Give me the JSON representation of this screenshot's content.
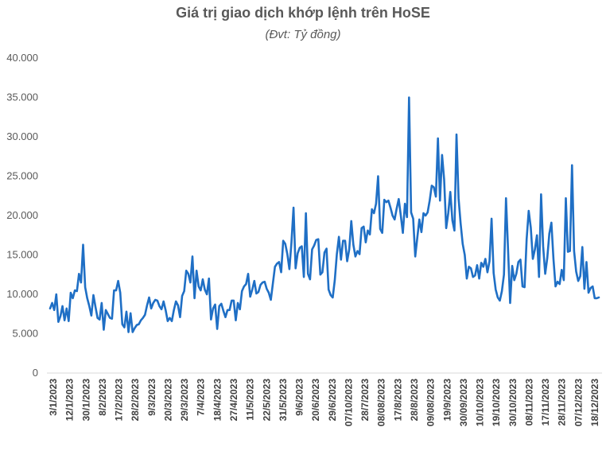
{
  "chart_data": {
    "type": "line",
    "title": "Giá trị giao dịch khớp lệnh trên HoSE",
    "subtitle": "(Đvt: Tỷ đồng)",
    "xlabel": "",
    "ylabel": "",
    "ylim": [
      0,
      40000
    ],
    "yticks": [
      "0",
      "5.000",
      "10.000",
      "15.000",
      "20.000",
      "25.000",
      "30.000",
      "35.000",
      "40.000"
    ],
    "x_tick_labels": [
      "3/1/2023",
      "12/1/2023",
      "30/1/2023",
      "8/2/2023",
      "17/2/2023",
      "28/2/2023",
      "9/3/2023",
      "20/3/2023",
      "29/3/2023",
      "7/4/2023",
      "18/4/2023",
      "27/4/2023",
      "11/5/2023",
      "22/5/2023",
      "31/5/2023",
      "9/6/2023",
      "20/6/2023",
      "29/6/2023",
      "07/10/2023",
      "28/7/2023",
      "08/08/2023",
      "17/8/2023",
      "28/8/2023",
      "09/08/2023",
      "19/9/2023",
      "30/09/2023",
      "10/10/2023",
      "19/10/2023",
      "30/10/2023",
      "08/11/2023",
      "17/11/2023",
      "28/11/2023",
      "07/12/2023",
      "18/12/2023"
    ],
    "grid": false,
    "legend": "none",
    "line_color": "#1F6FC5",
    "series": [
      {
        "values": [
          8200,
          8900,
          8000,
          10000,
          6500,
          7200,
          8500,
          6700,
          8200,
          6600,
          10200,
          9500,
          10500,
          10400,
          12600,
          11500,
          16300,
          10900,
          9500,
          8500,
          7300,
          9900,
          8400,
          7000,
          6800,
          8900,
          5500,
          8000,
          7500,
          7000,
          6900,
          10500,
          10500,
          11700,
          10200,
          6200,
          5800,
          7800,
          5200,
          7600,
          5200,
          5700,
          6100,
          6200,
          6700,
          7000,
          7400,
          8600,
          9600,
          8200,
          8900,
          9300,
          9200,
          8500,
          8100,
          9100,
          8000,
          6600,
          7000,
          6600,
          8000,
          9100,
          8600,
          7100,
          9800,
          10400,
          13000,
          12600,
          11500,
          14800,
          9500,
          13000,
          11000,
          10500,
          11900,
          10600,
          10000,
          12000,
          6800,
          8200,
          8700,
          5600,
          8500,
          8800,
          7900,
          7100,
          8000,
          8000,
          9200,
          9200,
          6700,
          8900,
          8100,
          10400,
          11000,
          11300,
          12600,
          9700,
          10600,
          11700,
          10100,
          10300,
          11200,
          11500,
          11600,
          10700,
          10200,
          9300,
          11400,
          13500,
          13900,
          14100,
          12800,
          16800,
          16400,
          15100,
          13200,
          16600,
          21000,
          13300,
          15200,
          15900,
          16100,
          12200,
          20300,
          12600,
          11900,
          15700,
          16200,
          16900,
          17000,
          12500,
          12800,
          15300,
          15800,
          10600,
          9900,
          9600,
          11800,
          15100,
          17300,
          14400,
          16800,
          16800,
          14200,
          15700,
          19300,
          16300,
          14800,
          15500,
          15100,
          18400,
          18600,
          16600,
          18100,
          17600,
          20800,
          20300,
          21500,
          25000,
          18300,
          17800,
          22000,
          21700,
          21900,
          21000,
          20000,
          19500,
          20900,
          22100,
          20000,
          17800,
          21500,
          19800,
          35000,
          20400,
          19600,
          14800,
          17200,
          19500,
          17900,
          20300,
          20000,
          20400,
          21900,
          23800,
          23600,
          22400,
          29800,
          21900,
          27700,
          24600,
          18400,
          20300,
          23000,
          19400,
          18100,
          30300,
          22200,
          19000,
          16400,
          15000,
          12000,
          13500,
          13300,
          12200,
          12400,
          13700,
          12000,
          14000,
          13500,
          14500,
          12800,
          14200,
          19600,
          12700,
          10600,
          9600,
          9200,
          10400,
          12500,
          22200,
          15600,
          8900,
          13600,
          11800,
          12600,
          14100,
          14400,
          11000,
          10900,
          17000,
          20600,
          18500,
          14500,
          15700,
          17500,
          12200,
          22700,
          16100,
          12600,
          14600,
          17700,
          19100,
          14500,
          11000,
          11600,
          11300,
          13100,
          11800,
          22200,
          15400,
          15500,
          26400,
          15500,
          12900,
          11700,
          12300,
          16000,
          10700,
          14100,
          10200,
          10800,
          11000,
          9500,
          9500,
          9600
        ]
      }
    ]
  }
}
